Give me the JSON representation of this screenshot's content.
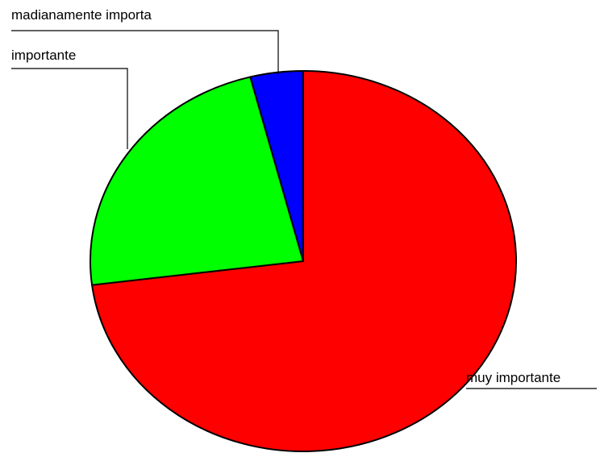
{
  "chart_data": {
    "type": "pie",
    "categories": [
      "muy importante",
      "importante",
      "madianamente importa"
    ],
    "values": [
      73,
      23,
      4
    ],
    "colors": [
      "#ff0000",
      "#00ff00",
      "#0000ff"
    ]
  }
}
